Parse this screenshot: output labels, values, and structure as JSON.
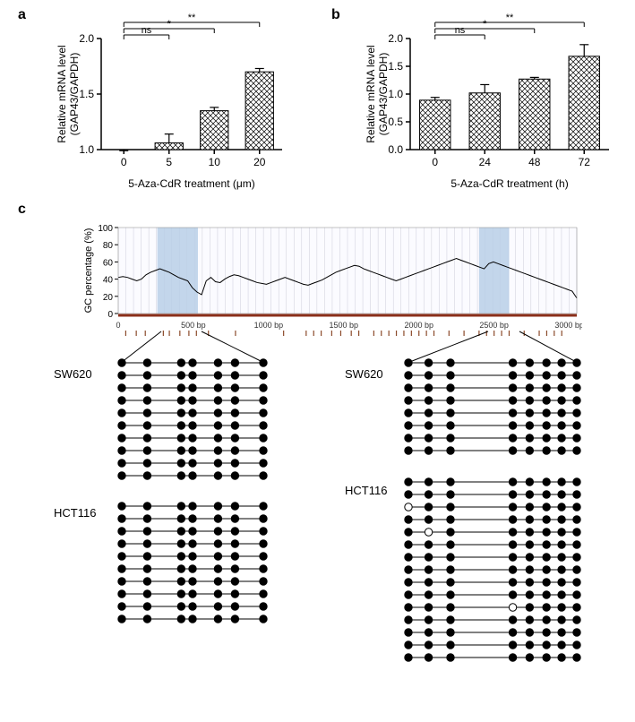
{
  "panelA": {
    "label": "a",
    "ylabel_line1": "Relative mRNA level",
    "ylabel_line2": "(GAP43/GAPDH)",
    "xlabel": "5-Aza-CdR treatment (μm)",
    "categories": [
      "0",
      "5",
      "10",
      "20"
    ],
    "values": [
      0.96,
      1.06,
      1.35,
      1.7
    ],
    "errors": [
      0.03,
      0.08,
      0.03,
      0.03
    ],
    "ylim": [
      1.0,
      2.0
    ],
    "yticks": [
      1.0,
      1.5,
      2.0
    ],
    "annotations": [
      "ns",
      "*",
      "**"
    ],
    "bar_fill": "#ffffff",
    "bar_pattern": "crosshatch",
    "axis_color": "#000000",
    "font_size_axis": 12,
    "font_size_label": 12
  },
  "panelB": {
    "label": "b",
    "ylabel_line1": "Relative mRNA level",
    "ylabel_line2": "(GAP43/GAPDH)",
    "xlabel": "5-Aza-CdR treatment (h)",
    "categories": [
      "0",
      "24",
      "48",
      "72"
    ],
    "values": [
      0.89,
      1.02,
      1.27,
      1.68
    ],
    "errors": [
      0.05,
      0.15,
      0.03,
      0.21
    ],
    "ylim": [
      0,
      2.0
    ],
    "yticks": [
      0,
      0.5,
      1.0,
      1.5,
      2.0
    ],
    "annotations": [
      "ns",
      "*",
      "**"
    ],
    "bar_fill": "#ffffff",
    "bar_pattern": "crosshatch",
    "axis_color": "#000000",
    "font_size_axis": 12,
    "font_size_label": 12
  },
  "panelC": {
    "label": "c",
    "gc_plot": {
      "ylabel": "GC percentage (%)",
      "xticks": [
        0,
        500,
        1000,
        1500,
        2000,
        2500,
        3000
      ],
      "xtick_labels": [
        "0",
        "500  bp",
        "1000  bp",
        "1500  bp",
        "2000  bp",
        "2500  bp",
        "3000  bp"
      ],
      "yticks": [
        0,
        20,
        40,
        60,
        80,
        100
      ],
      "xlim": [
        0,
        3050
      ],
      "ylim": [
        0,
        100
      ],
      "highlight_regions": [
        [
          260,
          530
        ],
        [
          2400,
          2600
        ]
      ],
      "highlight_color": "#b9cfe8",
      "line_color": "#000000",
      "grid_color": "#c0c0d0",
      "axis_color": "#8b2f1a",
      "tick_marks_color": "#8b4a2a",
      "data": [
        42,
        43,
        42,
        40,
        38,
        40,
        45,
        48,
        50,
        52,
        50,
        48,
        45,
        42,
        40,
        38,
        30,
        25,
        22,
        38,
        42,
        37,
        36,
        40,
        43,
        45,
        44,
        42,
        40,
        38,
        36,
        35,
        34,
        36,
        38,
        40,
        42,
        40,
        38,
        36,
        34,
        33,
        35,
        37,
        39,
        42,
        45,
        48,
        50,
        52,
        54,
        56,
        55,
        52,
        50,
        48,
        46,
        44,
        42,
        40,
        38,
        40,
        42,
        44,
        46,
        48,
        50,
        52,
        54,
        56,
        58,
        60,
        62,
        64,
        62,
        60,
        58,
        56,
        54,
        52,
        58,
        60,
        58,
        56,
        54,
        52,
        50,
        48,
        46,
        44,
        42,
        40,
        38,
        36,
        34,
        32,
        30,
        28,
        26,
        18
      ]
    },
    "lollipops": {
      "region1": {
        "sites": 7,
        "positions": [
          0,
          0.18,
          0.42,
          0.5,
          0.68,
          0.8,
          1.0
        ],
        "SW620": {
          "label": "SW620",
          "rows": 10,
          "meth": [
            [
              1,
              1,
              1,
              1,
              1,
              1,
              1
            ],
            [
              1,
              1,
              1,
              1,
              1,
              1,
              1
            ],
            [
              1,
              1,
              1,
              1,
              1,
              1,
              1
            ],
            [
              1,
              1,
              1,
              1,
              1,
              1,
              1
            ],
            [
              1,
              1,
              1,
              1,
              1,
              1,
              1
            ],
            [
              1,
              1,
              1,
              1,
              1,
              1,
              1
            ],
            [
              1,
              1,
              1,
              1,
              1,
              1,
              1
            ],
            [
              1,
              1,
              1,
              1,
              1,
              1,
              1
            ],
            [
              1,
              1,
              1,
              1,
              1,
              1,
              1
            ],
            [
              1,
              1,
              1,
              1,
              1,
              1,
              1
            ]
          ]
        },
        "HCT116": {
          "label": "HCT116",
          "rows": 10,
          "meth": [
            [
              1,
              1,
              1,
              1,
              1,
              1,
              1
            ],
            [
              1,
              1,
              1,
              1,
              1,
              1,
              1
            ],
            [
              1,
              1,
              1,
              1,
              1,
              1,
              1
            ],
            [
              1,
              1,
              1,
              1,
              1,
              1,
              1
            ],
            [
              1,
              1,
              1,
              1,
              1,
              1,
              1
            ],
            [
              1,
              1,
              1,
              1,
              1,
              1,
              1
            ],
            [
              1,
              1,
              1,
              1,
              1,
              1,
              1
            ],
            [
              1,
              1,
              1,
              1,
              1,
              1,
              1
            ],
            [
              1,
              1,
              1,
              1,
              1,
              1,
              1
            ],
            [
              1,
              1,
              1,
              1,
              1,
              1,
              1
            ]
          ]
        }
      },
      "region2": {
        "sites": 8,
        "positions": [
          0,
          0.12,
          0.25,
          0.62,
          0.72,
          0.82,
          0.91,
          1.0
        ],
        "SW620": {
          "label": "SW620",
          "rows": 8,
          "meth": [
            [
              1,
              1,
              1,
              1,
              1,
              1,
              1,
              1
            ],
            [
              1,
              1,
              1,
              1,
              1,
              1,
              1,
              1
            ],
            [
              1,
              1,
              1,
              1,
              1,
              1,
              1,
              1
            ],
            [
              1,
              1,
              1,
              1,
              1,
              1,
              1,
              1
            ],
            [
              1,
              1,
              1,
              1,
              1,
              1,
              1,
              1
            ],
            [
              1,
              1,
              1,
              1,
              1,
              1,
              1,
              1
            ],
            [
              1,
              1,
              1,
              1,
              1,
              1,
              1,
              1
            ],
            [
              1,
              1,
              1,
              1,
              1,
              1,
              1,
              1
            ]
          ]
        },
        "HCT116": {
          "label": "HCT116",
          "rows": 15,
          "meth": [
            [
              1,
              1,
              1,
              1,
              1,
              1,
              1,
              1
            ],
            [
              1,
              1,
              1,
              1,
              1,
              1,
              1,
              1
            ],
            [
              0,
              1,
              1,
              1,
              1,
              1,
              1,
              1
            ],
            [
              1,
              1,
              1,
              1,
              1,
              1,
              1,
              1
            ],
            [
              1,
              0,
              1,
              1,
              1,
              1,
              1,
              1
            ],
            [
              1,
              1,
              1,
              1,
              1,
              1,
              1,
              1
            ],
            [
              1,
              1,
              1,
              1,
              1,
              1,
              1,
              1
            ],
            [
              1,
              1,
              1,
              1,
              1,
              1,
              1,
              1
            ],
            [
              1,
              1,
              1,
              1,
              1,
              1,
              1,
              1
            ],
            [
              1,
              1,
              1,
              1,
              1,
              1,
              1,
              1
            ],
            [
              1,
              1,
              1,
              0,
              1,
              1,
              1,
              1
            ],
            [
              1,
              1,
              1,
              1,
              1,
              1,
              1,
              1
            ],
            [
              1,
              1,
              1,
              1,
              1,
              1,
              1,
              1
            ],
            [
              1,
              1,
              1,
              1,
              1,
              1,
              1,
              1
            ],
            [
              1,
              1,
              1,
              1,
              1,
              1,
              1,
              1
            ]
          ]
        }
      }
    }
  }
}
